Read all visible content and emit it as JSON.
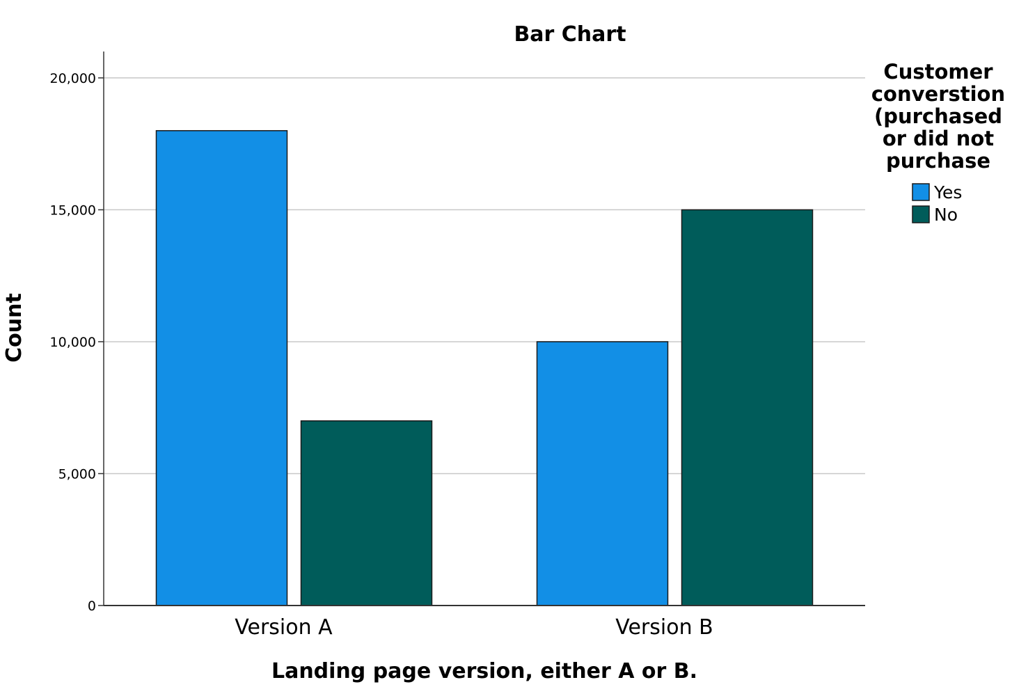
{
  "chart_data": {
    "type": "bar",
    "title": "Bar Chart",
    "xlabel": "Landing page version, either A or B.",
    "ylabel": "Count",
    "categories": [
      "Version A",
      "Version B"
    ],
    "series": [
      {
        "name": "Yes",
        "values": [
          18000,
          10000
        ],
        "color": "#128fe6"
      },
      {
        "name": "No",
        "values": [
          7000,
          15000
        ],
        "color": "#005c5a"
      }
    ],
    "ylim": [
      0,
      21000
    ],
    "yticks": [
      0,
      5000,
      10000,
      15000,
      20000
    ],
    "ytick_labels": [
      "0",
      "5,000",
      "10,000",
      "15,000",
      "20,000"
    ],
    "grid": true,
    "legend": {
      "title_lines": [
        "Customer",
        "converstion",
        "(purchased",
        "or did not",
        "purchase"
      ],
      "placement": "top-right"
    }
  }
}
